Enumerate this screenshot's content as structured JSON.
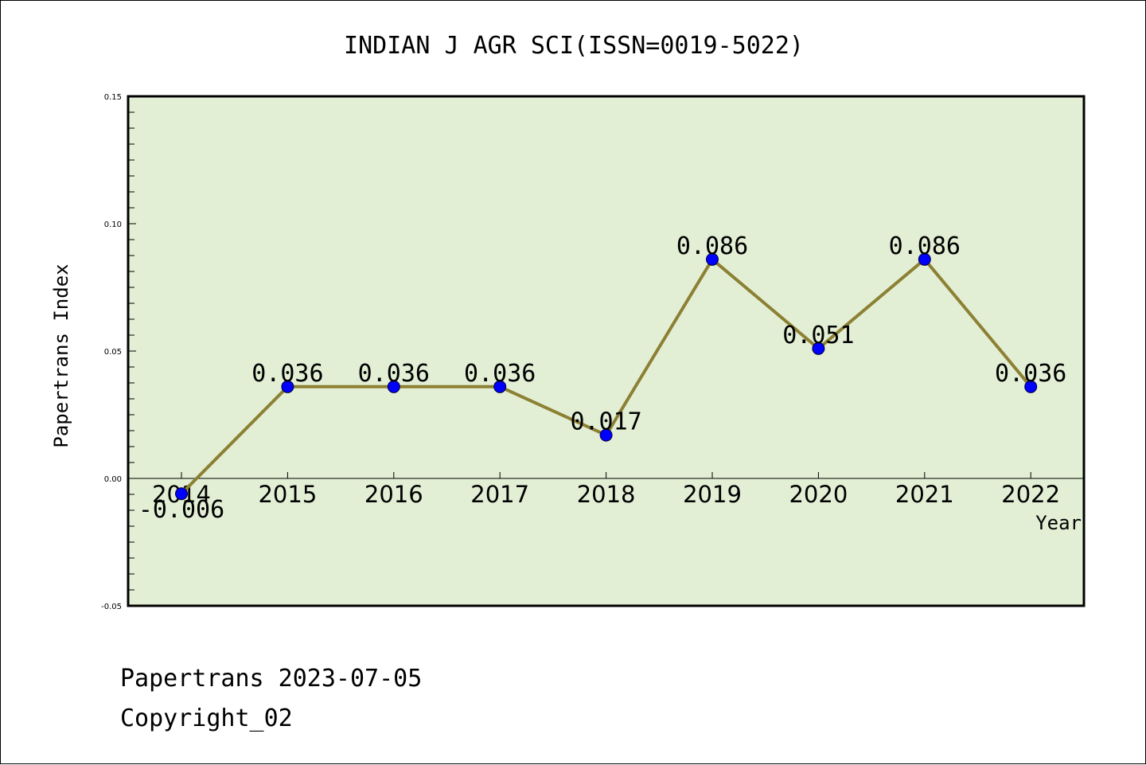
{
  "chart_data": {
    "type": "line",
    "title": "INDIAN J AGR SCI(ISSN=0019-5022)",
    "xlabel": "Year",
    "ylabel": "Papertrans Index",
    "categories": [
      "2014",
      "2015",
      "2016",
      "2017",
      "2018",
      "2019",
      "2020",
      "2021",
      "2022"
    ],
    "series": [
      {
        "values": [
          -0.006,
          0.036,
          0.036,
          0.036,
          0.017,
          0.086,
          0.051,
          0.086,
          0.036
        ],
        "labels": [
          "-0.006",
          "0.036",
          "0.036",
          "0.036",
          "0.017",
          "0.086",
          "0.051",
          "0.086",
          "0.036"
        ]
      }
    ],
    "ylim": [
      -0.05,
      0.15
    ],
    "yticks": [
      "0.15",
      "0.10",
      "0.05",
      "0.00",
      "-0.05"
    ],
    "grid": false,
    "legend": "none",
    "colors": {
      "plot_background": "#e2efd5",
      "line": "#8c8033",
      "marker": "#0000ff"
    }
  },
  "footer": {
    "source": "Papertrans 2023-07-05",
    "copyright": "Copyright_02"
  }
}
